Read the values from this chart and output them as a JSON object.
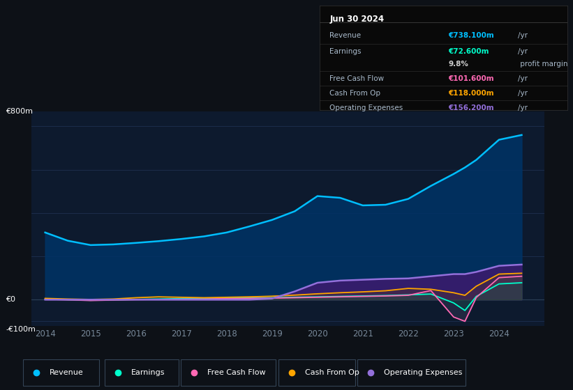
{
  "background_color": "#0d1117",
  "plot_bg_color": "#0d1a2e",
  "grid_color": "#1e3050",
  "years": [
    2014,
    2014.5,
    2015,
    2015.5,
    2016,
    2016.5,
    2017,
    2017.5,
    2018,
    2018.5,
    2019,
    2019.5,
    2020,
    2020.5,
    2021,
    2021.5,
    2022,
    2022.5,
    2023,
    2023.25,
    2023.5,
    2024,
    2024.5
  ],
  "revenue": [
    310,
    272,
    252,
    255,
    262,
    270,
    280,
    292,
    310,
    338,
    368,
    408,
    478,
    470,
    435,
    438,
    465,
    525,
    580,
    610,
    645,
    738,
    760
  ],
  "earnings": [
    3,
    0,
    -3,
    -1,
    1,
    3,
    5,
    6,
    7,
    8,
    9,
    11,
    13,
    15,
    17,
    19,
    22,
    26,
    -15,
    -50,
    15,
    72.6,
    78
  ],
  "free_cash_flow": [
    2,
    -1,
    -4,
    -2,
    0,
    1,
    2,
    3,
    5,
    6,
    7,
    9,
    11,
    13,
    15,
    17,
    20,
    42,
    -80,
    -100,
    10,
    101.6,
    108
  ],
  "cash_from_op": [
    6,
    3,
    1,
    3,
    9,
    13,
    11,
    9,
    11,
    13,
    16,
    21,
    27,
    32,
    36,
    41,
    52,
    48,
    32,
    20,
    62,
    118,
    122
  ],
  "operating_expenses": [
    0,
    0,
    0,
    0,
    0,
    0,
    0,
    0,
    0,
    0,
    5,
    38,
    78,
    88,
    92,
    96,
    98,
    108,
    118,
    118,
    128,
    156.2,
    162
  ],
  "revenue_color": "#00bfff",
  "earnings_color": "#00ffcc",
  "fcf_color": "#ff69b4",
  "cashop_color": "#ffa500",
  "opex_color": "#9370db",
  "revenue_fill_color": "#003366",
  "opex_fill_color": "#3d1a6e",
  "ylim_min": -120,
  "ylim_max": 870,
  "info_box": {
    "title": "Jun 30 2024",
    "rows": [
      {
        "label": "Revenue",
        "value": "€738.100m",
        "unit": "/yr",
        "color": "#00bfff"
      },
      {
        "label": "Earnings",
        "value": "€72.600m",
        "unit": "/yr",
        "color": "#00ffcc"
      },
      {
        "label": "",
        "value": "9.8%",
        "unit": " profit margin",
        "color": "#cccccc"
      },
      {
        "label": "Free Cash Flow",
        "value": "€101.600m",
        "unit": "/yr",
        "color": "#ff69b4"
      },
      {
        "label": "Cash From Op",
        "value": "€118.000m",
        "unit": "/yr",
        "color": "#ffa500"
      },
      {
        "label": "Operating Expenses",
        "value": "€156.200m",
        "unit": "/yr",
        "color": "#9370db"
      }
    ]
  },
  "legend": [
    {
      "label": "Revenue",
      "color": "#00bfff"
    },
    {
      "label": "Earnings",
      "color": "#00ffcc"
    },
    {
      "label": "Free Cash Flow",
      "color": "#ff69b4"
    },
    {
      "label": "Cash From Op",
      "color": "#ffa500"
    },
    {
      "label": "Operating Expenses",
      "color": "#9370db"
    }
  ]
}
